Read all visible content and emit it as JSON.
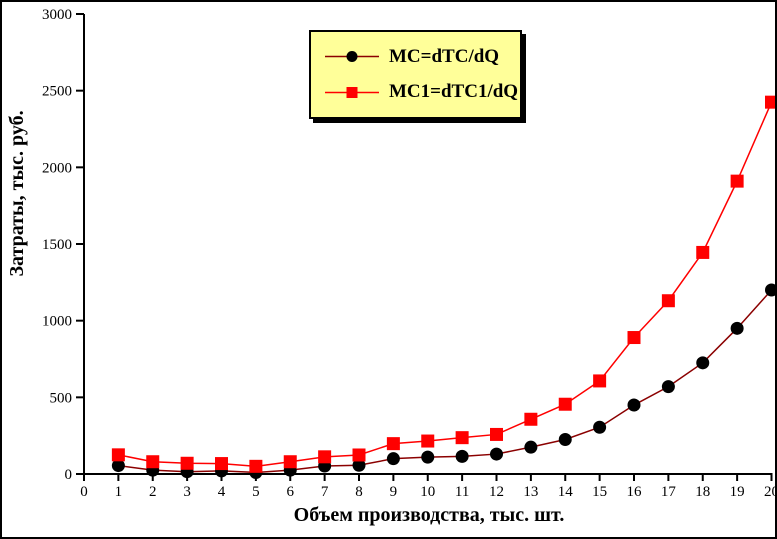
{
  "frame": {
    "background": "#ffffff",
    "border_color": "#000000"
  },
  "chart_data": {
    "type": "line",
    "title": "",
    "xlabel": "Объем производства, тыс. шт.",
    "ylabel": "Затраты, тыс. руб.",
    "xlim": [
      0,
      20
    ],
    "ylim": [
      0,
      3000
    ],
    "x_ticks": [
      0,
      1,
      2,
      3,
      4,
      5,
      6,
      7,
      8,
      9,
      10,
      11,
      12,
      13,
      14,
      15,
      16,
      17,
      18,
      19,
      20
    ],
    "y_ticks": [
      0,
      500,
      1000,
      1500,
      2000,
      2500,
      3000
    ],
    "grid": false,
    "axis_color": "#000000",
    "legend": {
      "position": "top-center",
      "bg_color": "#ffff99",
      "border_color": "#000000",
      "shadow": true
    },
    "x": [
      1,
      2,
      3,
      4,
      5,
      6,
      7,
      8,
      9,
      10,
      11,
      12,
      13,
      14,
      15,
      16,
      17,
      18,
      19,
      20
    ],
    "series": [
      {
        "name": "MC=dTC/dQ",
        "marker": "circle",
        "marker_color": "#000000",
        "line_color": "#8b0000",
        "values": [
          55,
          25,
          15,
          20,
          10,
          25,
          52,
          57,
          100,
          110,
          115,
          130,
          175,
          225,
          305,
          450,
          570,
          725,
          950,
          1200
        ]
      },
      {
        "name": "MC1=dTC1/dQ",
        "marker": "square",
        "marker_color": "#ff0000",
        "line_color": "#ff0000",
        "values": [
          125,
          80,
          70,
          68,
          50,
          80,
          112,
          124,
          198,
          215,
          237,
          258,
          357,
          455,
          607,
          890,
          1130,
          1445,
          1910,
          2425
        ]
      }
    ]
  }
}
